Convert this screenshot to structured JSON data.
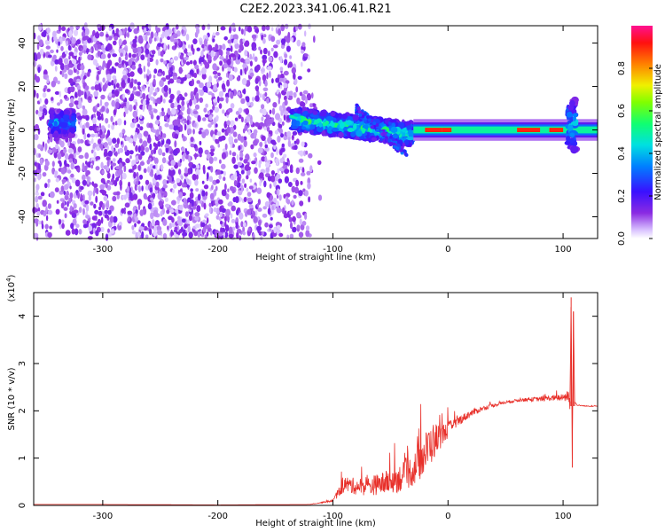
{
  "title": "C2E2.2023.341.06.41.R21",
  "colors": {
    "snr_line": "#e8302a",
    "spectrum_core": "#00c8b4",
    "spectrum_peak": "#e0102a",
    "spectrum_low": "#7a1cff",
    "background": "#ffffff"
  },
  "chart_data": [
    {
      "type": "heatmap",
      "xlabel": "Height of straight line (km)",
      "ylabel": "Frequency (Hz)",
      "xlim": [
        -360,
        130
      ],
      "ylim": [
        -50,
        48
      ],
      "xticks": [
        -300,
        -200,
        -100,
        0,
        100
      ],
      "yticks": [
        -40,
        -20,
        0,
        20,
        40
      ],
      "xtick_labels": [
        "-300",
        "-200",
        "-100",
        "0",
        "100"
      ],
      "ytick_labels": [
        "-40",
        "-20",
        "0",
        "20",
        "40"
      ],
      "colorbar": {
        "label": "Normalized spectral amplitude",
        "range": [
          0.0,
          1.0
        ],
        "ticks": [
          0.0,
          0.2,
          0.4,
          0.6,
          0.8
        ],
        "tick_labels": [
          "0.0",
          "0.2",
          "0.4",
          "0.6",
          "0.8"
        ],
        "colormap": "rainbow (violet→blue→cyan→green→yellow→red→magenta)"
      },
      "features": [
        {
          "name": "noise_region",
          "x_range": [
            -360,
            -120
          ],
          "freq_range": [
            -50,
            48
          ],
          "amplitude": [
            0.0,
            0.15
          ]
        },
        {
          "name": "signal_band_left",
          "x_range": [
            -345,
            -325
          ],
          "freq_center": 3,
          "freq_halfwidth": 6,
          "amplitude": 0.3
        },
        {
          "name": "signal_band_drift",
          "x_range": [
            -135,
            -30
          ],
          "freq_center_start": 5,
          "freq_center_end": -2,
          "freq_halfwidth": 5,
          "amplitude": 0.45
        },
        {
          "name": "signal_band_stable",
          "x_range": [
            -30,
            130
          ],
          "freq_center": 0,
          "freq_halfwidth": 2.5,
          "amplitude": 0.6
        },
        {
          "name": "peak_segments",
          "x_range": [
            -20,
            100
          ],
          "freq_center": 0,
          "amplitude": 0.9
        },
        {
          "name": "spike_region",
          "x_range": [
            104,
            112
          ],
          "freq_range": [
            -10,
            14
          ],
          "amplitude": 0.4
        }
      ]
    },
    {
      "type": "line",
      "xlabel": "Height of straight line (km)",
      "ylabel": "SNR (10 * v/v)",
      "y_scale_label": "(x10",
      "y_scale_exponent": "4",
      "y_scale_suffix": ")",
      "xlim": [
        -360,
        130
      ],
      "ylim": [
        0,
        4.5
      ],
      "xticks": [
        -300,
        -200,
        -100,
        0,
        100
      ],
      "yticks": [
        0,
        1,
        2,
        3,
        4
      ],
      "xtick_labels": [
        "-300",
        "-200",
        "-100",
        "0",
        "100"
      ],
      "ytick_labels": [
        "0",
        "1",
        "2",
        "3",
        "4"
      ],
      "series": [
        {
          "color": "#e8302a",
          "x": [
            -360,
            -300,
            -200,
            -120,
            -100,
            -90,
            -80,
            -70,
            -60,
            -50,
            -40,
            -30,
            -20,
            -15,
            -10,
            -5,
            0,
            10,
            20,
            30,
            40,
            50,
            60,
            70,
            80,
            90,
            100,
            104,
            106,
            107,
            108,
            109,
            110,
            112,
            120,
            130
          ],
          "y": [
            0.02,
            0.02,
            0.01,
            0.02,
            0.1,
            0.45,
            0.4,
            0.4,
            0.45,
            0.5,
            0.6,
            0.75,
            1.1,
            1.3,
            1.4,
            1.5,
            1.6,
            1.8,
            1.95,
            2.05,
            2.12,
            2.18,
            2.22,
            2.24,
            2.25,
            2.27,
            2.28,
            2.3,
            2.2,
            4.4,
            0.8,
            4.1,
            2.2,
            2.12,
            2.1,
            2.1
          ],
          "noise_amplitude": [
            0.0,
            0.0,
            0.0,
            0.0,
            0.05,
            0.35,
            0.35,
            0.4,
            0.45,
            0.55,
            0.6,
            0.7,
            0.9,
            0.9,
            0.7,
            0.45,
            0.35,
            0.2,
            0.15,
            0.1,
            0.08,
            0.06,
            0.06,
            0.08,
            0.1,
            0.12,
            0.15,
            0.25,
            0.5,
            0.0,
            0.0,
            0.0,
            0.05,
            0.02,
            0.02,
            0.02
          ]
        }
      ]
    }
  ]
}
